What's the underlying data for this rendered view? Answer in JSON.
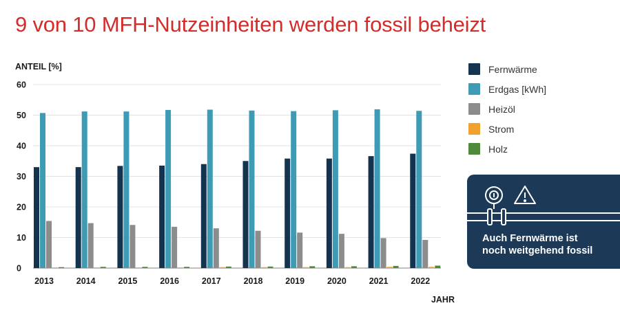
{
  "headline": "9 von 10 MFH-Nutzeinheiten werden fossil beheizt",
  "chart_data": {
    "type": "bar",
    "title": "9 von 10 MFH-Nutzeinheiten werden fossil beheizt",
    "ylabel": "ANTEIL [%]",
    "xlabel": "JAHR",
    "ylim": [
      0,
      60
    ],
    "yticks": [
      "0",
      "10",
      "20",
      "30",
      "40",
      "50",
      "60"
    ],
    "grid": true,
    "legend_position": "right",
    "categories": [
      "2013",
      "2014",
      "2015",
      "2016",
      "2017",
      "2018",
      "2019",
      "2020",
      "2021",
      "2022"
    ],
    "series": [
      {
        "name": "Fernwärme",
        "color": "#14334f",
        "values": [
          33.0,
          33.0,
          33.4,
          33.5,
          34.0,
          35.0,
          35.8,
          35.8,
          36.6,
          37.4
        ]
      },
      {
        "name": "Erdgas [kWh]",
        "color": "#3e9bb6",
        "values": [
          50.7,
          51.2,
          51.2,
          51.7,
          51.8,
          51.5,
          51.3,
          51.6,
          51.9,
          51.4
        ]
      },
      {
        "name": "Heizöl",
        "color": "#8c8c8c",
        "values": [
          15.4,
          14.7,
          14.1,
          13.5,
          13.0,
          12.2,
          11.6,
          11.2,
          9.8,
          9.2
        ]
      },
      {
        "name": "Strom",
        "color": "#f2a12e",
        "values": [
          0.2,
          0.2,
          0.2,
          0.2,
          0.3,
          0.3,
          0.3,
          0.3,
          0.4,
          0.4
        ]
      },
      {
        "name": "Holz",
        "color": "#4f8a3a",
        "values": [
          0.3,
          0.4,
          0.4,
          0.4,
          0.5,
          0.5,
          0.6,
          0.6,
          0.7,
          0.8
        ]
      }
    ]
  },
  "info_box": {
    "text_line1": "Auch Fernwärme ist",
    "text_line2": "noch weitgehend fossil",
    "icons": [
      "thermometer-gauge-icon",
      "warning-triangle-icon",
      "pipe-icon"
    ]
  }
}
